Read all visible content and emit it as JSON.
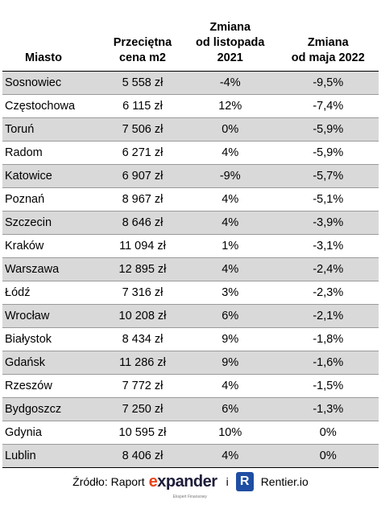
{
  "table": {
    "columns": [
      [
        "Miasto"
      ],
      [
        "Przeciętna",
        "cena m2"
      ],
      [
        "Zmiana",
        "od listopada",
        "2021"
      ],
      [
        "Zmiana",
        "od maja 2022"
      ]
    ],
    "rows": [
      [
        "Sosnowiec",
        "5 558 zł",
        "-4%",
        "-9,5%"
      ],
      [
        "Częstochowa",
        "6 115 zł",
        "12%",
        "-7,4%"
      ],
      [
        "Toruń",
        "7 506 zł",
        "0%",
        "-5,9%"
      ],
      [
        "Radom",
        "6 271 zł",
        "4%",
        "-5,9%"
      ],
      [
        "Katowice",
        "6 907 zł",
        "-9%",
        "-5,7%"
      ],
      [
        "Poznań",
        "8 967 zł",
        "4%",
        "-5,1%"
      ],
      [
        "Szczecin",
        "8 646 zł",
        "4%",
        "-3,9%"
      ],
      [
        "Kraków",
        "11 094 zł",
        "1%",
        "-3,1%"
      ],
      [
        "Warszawa",
        "12 895 zł",
        "4%",
        "-2,4%"
      ],
      [
        "Łódź",
        "7 316 zł",
        "3%",
        "-2,3%"
      ],
      [
        "Wrocław",
        "10 208 zł",
        "6%",
        "-2,1%"
      ],
      [
        "Białystok",
        "8 434 zł",
        "9%",
        "-1,8%"
      ],
      [
        "Gdańsk",
        "11 286 zł",
        "9%",
        "-1,6%"
      ],
      [
        "Rzeszów",
        "7 772 zł",
        "4%",
        "-1,5%"
      ],
      [
        "Bydgoszcz",
        "7 250 zł",
        "6%",
        "-1,3%"
      ],
      [
        "Gdynia",
        "10 595 zł",
        "10%",
        "0%"
      ],
      [
        "Lublin",
        "8 406 zł",
        "4%",
        "0%"
      ]
    ]
  },
  "footer": {
    "prefix": "Źródło: Raport",
    "logo1_mark": "e",
    "logo1_rest": "xpander",
    "logo1_tagline": "Ekspert Finansowy",
    "connector": "i",
    "logo2_icon": "R",
    "logo2": "Rentier.io"
  }
}
